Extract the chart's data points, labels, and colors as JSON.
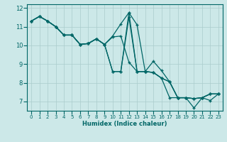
{
  "xlabel": "Humidex (Indice chaleur)",
  "bg_color": "#cce8e8",
  "grid_color": "#aacccc",
  "line_color": "#006666",
  "xlim": [
    -0.5,
    23.5
  ],
  "ylim": [
    6.5,
    12.2
  ],
  "xticks": [
    0,
    1,
    2,
    3,
    4,
    5,
    6,
    7,
    8,
    9,
    10,
    11,
    12,
    13,
    14,
    15,
    16,
    17,
    18,
    19,
    20,
    21,
    22,
    23
  ],
  "yticks": [
    7,
    8,
    9,
    10,
    11,
    12
  ],
  "series": [
    {
      "x": [
        0,
        1,
        2,
        3,
        4,
        5,
        6,
        7,
        8,
        9,
        10,
        11,
        12,
        13,
        14,
        15,
        16,
        17,
        18,
        19,
        20,
        21,
        22,
        23
      ],
      "y": [
        11.3,
        11.55,
        11.3,
        11.0,
        10.55,
        10.55,
        10.05,
        10.1,
        10.35,
        10.05,
        10.45,
        10.5,
        9.1,
        8.6,
        8.6,
        8.55,
        8.25,
        8.05,
        7.2,
        7.2,
        7.15,
        7.2,
        7.4,
        7.4
      ]
    },
    {
      "x": [
        0,
        1,
        2,
        3,
        4,
        5,
        6,
        7,
        8,
        9,
        10,
        11,
        12,
        13,
        14,
        15,
        16,
        17,
        18,
        19,
        20,
        21,
        22,
        23
      ],
      "y": [
        11.3,
        11.55,
        11.3,
        11.0,
        10.55,
        10.55,
        10.05,
        10.1,
        10.35,
        10.05,
        10.5,
        11.15,
        11.75,
        8.6,
        8.6,
        8.55,
        8.25,
        8.05,
        7.2,
        7.2,
        7.15,
        7.2,
        7.4,
        7.4
      ]
    },
    {
      "x": [
        0,
        1,
        2,
        3,
        4,
        5,
        6,
        7,
        8,
        9,
        10,
        11,
        12,
        13,
        14,
        15,
        16,
        17,
        18,
        19,
        20,
        21,
        22,
        23
      ],
      "y": [
        11.3,
        11.55,
        11.3,
        11.0,
        10.55,
        10.55,
        10.05,
        10.1,
        10.35,
        10.05,
        8.6,
        8.6,
        11.75,
        11.1,
        8.6,
        8.55,
        8.25,
        7.2,
        7.2,
        7.2,
        6.65,
        7.2,
        7.4,
        7.4
      ]
    },
    {
      "x": [
        0,
        1,
        2,
        3,
        4,
        5,
        6,
        7,
        8,
        9,
        10,
        11,
        12,
        13,
        14,
        15,
        16,
        17,
        18,
        19,
        20,
        21,
        22,
        23
      ],
      "y": [
        11.3,
        11.55,
        11.3,
        11.0,
        10.55,
        10.55,
        10.05,
        10.1,
        10.35,
        10.05,
        8.6,
        8.6,
        11.5,
        8.6,
        8.6,
        9.15,
        8.65,
        8.05,
        7.2,
        7.2,
        7.15,
        7.2,
        7.05,
        7.4
      ]
    }
  ]
}
